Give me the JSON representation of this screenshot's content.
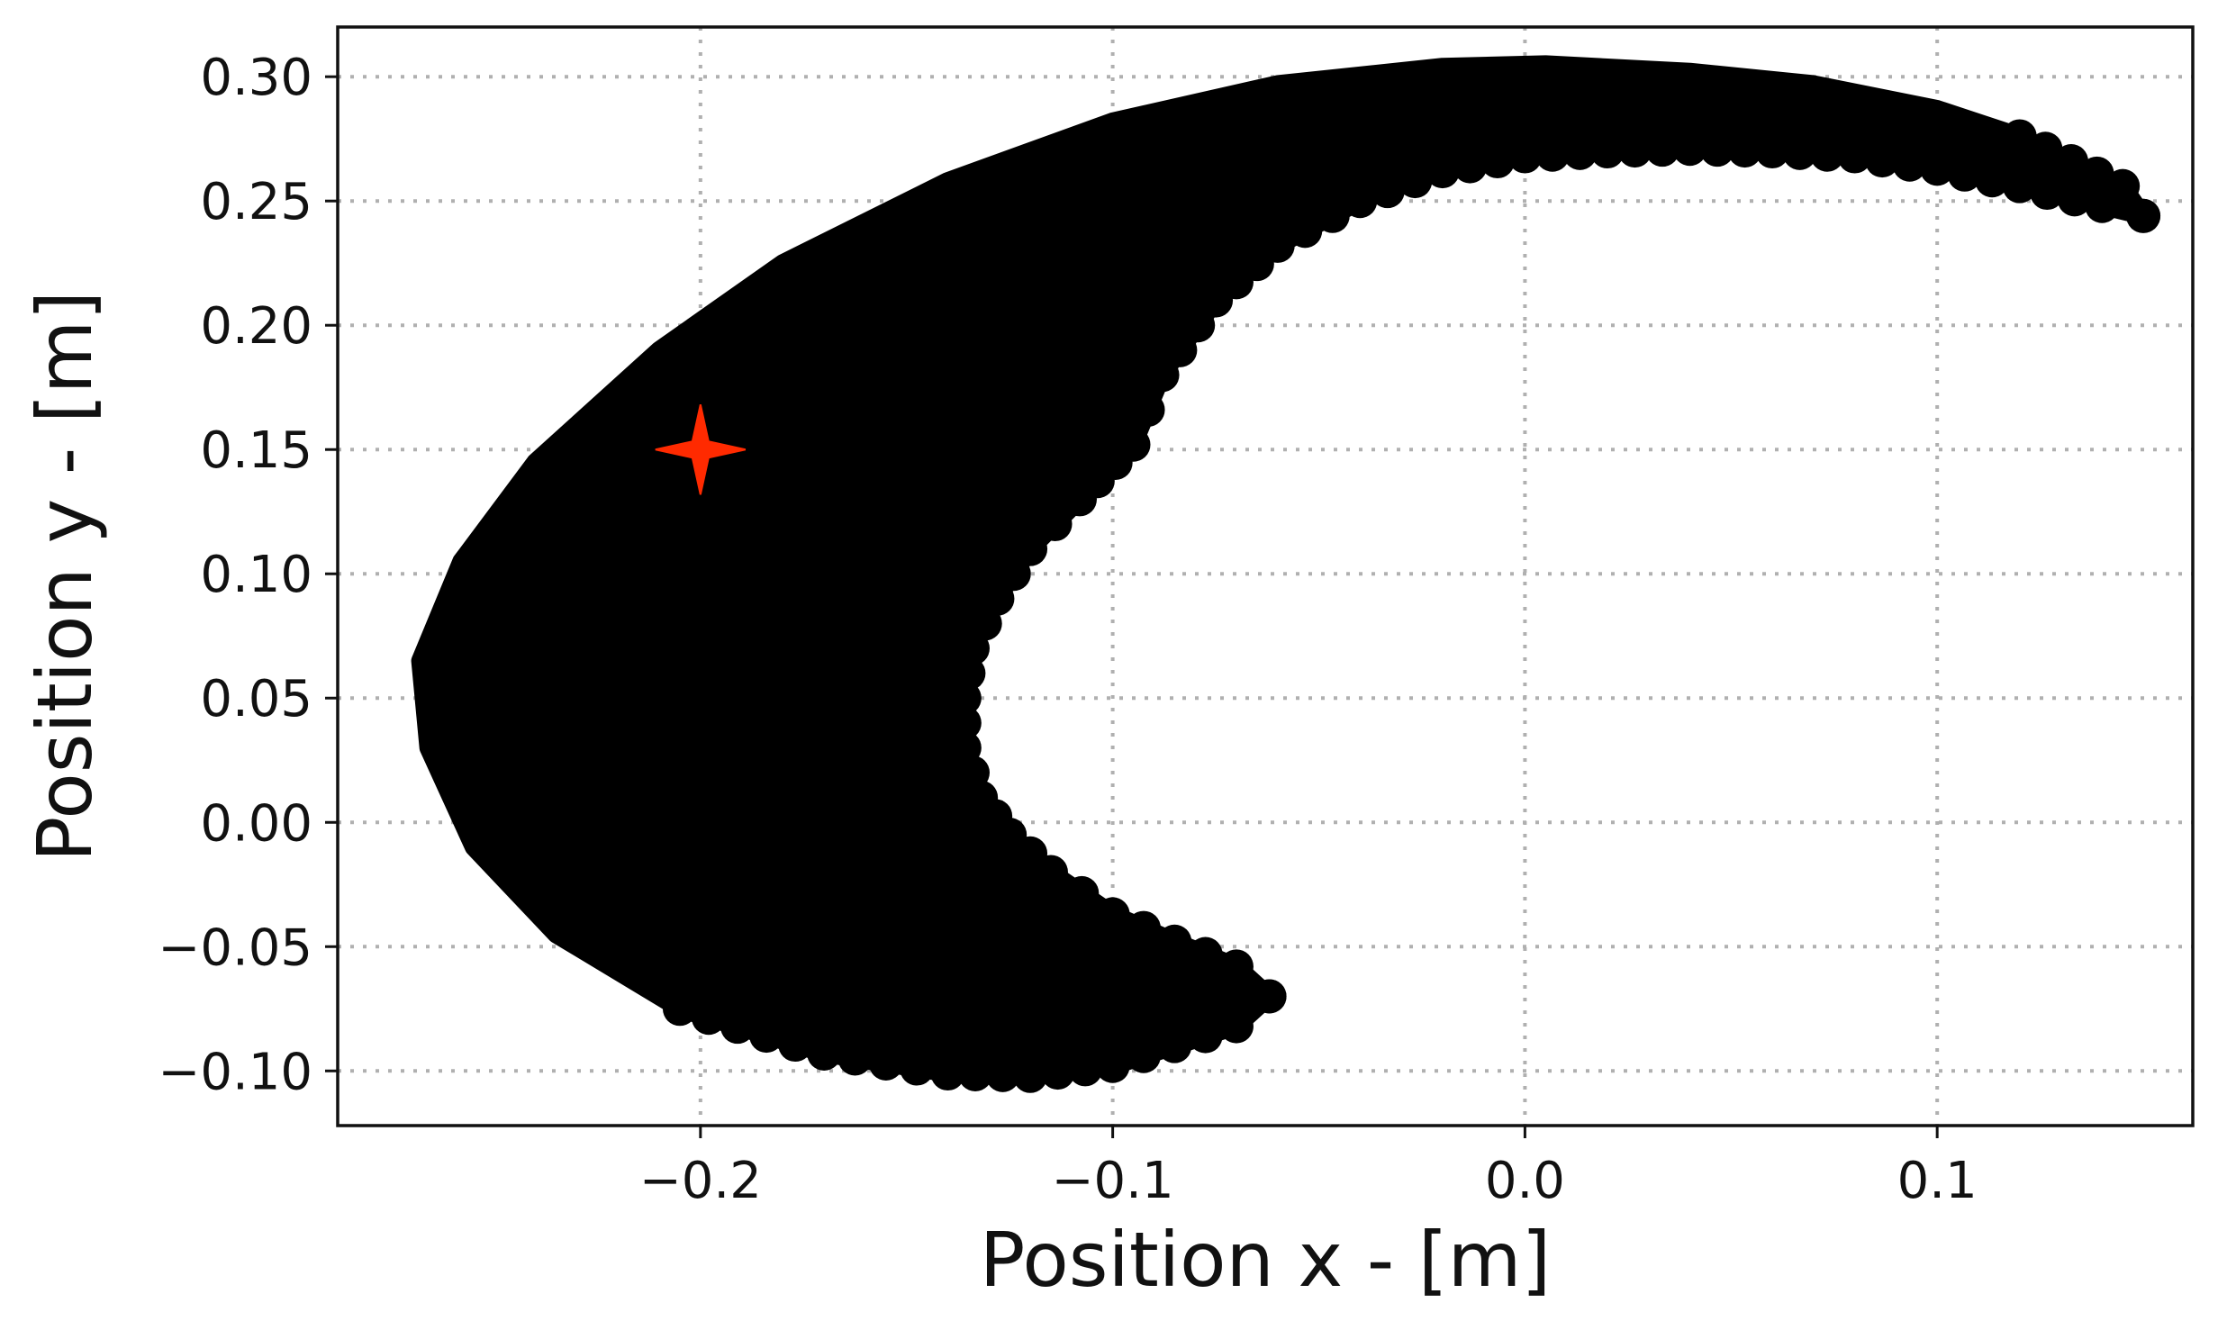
{
  "chart_data": {
    "type": "scatter",
    "title": "",
    "xlabel": "Position x - [m]",
    "ylabel": "Position y - [m]",
    "xlim": [
      -0.288,
      0.162
    ],
    "ylim": [
      -0.122,
      0.32
    ],
    "grid": true,
    "x_ticks": [
      -0.2,
      -0.1,
      0.0,
      0.1
    ],
    "x_tick_labels": [
      "−0.2",
      "−0.1",
      "0.0",
      "0.1"
    ],
    "y_ticks": [
      -0.1,
      -0.05,
      0.0,
      0.05,
      0.1,
      0.15,
      0.2,
      0.25,
      0.3
    ],
    "y_tick_labels": [
      "−0.10",
      "−0.05",
      "0.00",
      "0.05",
      "0.10",
      "0.15",
      "0.20",
      "0.25",
      "0.30"
    ],
    "series": [
      {
        "marker": "circle",
        "color": "#000000",
        "description_shape": "crescent-shaped reachable workspace",
        "outer_boundary": [
          [
            0.15,
            0.244
          ],
          [
            0.145,
            0.256
          ],
          [
            0.12,
            0.276
          ],
          [
            0.1,
            0.287
          ],
          [
            0.07,
            0.297
          ],
          [
            0.04,
            0.302
          ],
          [
            0.005,
            0.305
          ],
          [
            -0.02,
            0.304
          ],
          [
            -0.06,
            0.297
          ],
          [
            -0.1,
            0.282
          ],
          [
            -0.14,
            0.258
          ],
          [
            -0.18,
            0.225
          ],
          [
            -0.21,
            0.19
          ],
          [
            -0.24,
            0.145
          ],
          [
            -0.258,
            0.105
          ],
          [
            -0.268,
            0.065
          ],
          [
            -0.266,
            0.03
          ],
          [
            -0.255,
            -0.01
          ],
          [
            -0.235,
            -0.045
          ],
          [
            -0.205,
            -0.075
          ],
          [
            -0.17,
            -0.093
          ],
          [
            -0.14,
            -0.101
          ],
          [
            -0.12,
            -0.102
          ],
          [
            -0.1,
            -0.098
          ],
          [
            -0.085,
            -0.09
          ],
          [
            -0.07,
            -0.082
          ],
          [
            -0.062,
            -0.07
          ]
        ],
        "inner_boundary": [
          [
            -0.062,
            -0.07
          ],
          [
            -0.07,
            -0.058
          ],
          [
            -0.085,
            -0.048
          ],
          [
            -0.1,
            -0.037
          ],
          [
            -0.115,
            -0.02
          ],
          [
            -0.125,
            -0.005
          ],
          [
            -0.132,
            0.01
          ],
          [
            -0.136,
            0.03
          ],
          [
            -0.136,
            0.05
          ],
          [
            -0.134,
            0.07
          ],
          [
            -0.128,
            0.09
          ],
          [
            -0.12,
            0.11
          ],
          [
            -0.108,
            0.13
          ],
          [
            -0.095,
            0.152
          ],
          [
            -0.088,
            0.18
          ],
          [
            -0.075,
            0.21
          ],
          [
            -0.06,
            0.232
          ],
          [
            -0.04,
            0.25
          ],
          [
            -0.02,
            0.262
          ],
          [
            0.0,
            0.268
          ],
          [
            0.02,
            0.27
          ],
          [
            0.04,
            0.271
          ],
          [
            0.06,
            0.27
          ],
          [
            0.08,
            0.268
          ],
          [
            0.1,
            0.263
          ],
          [
            0.12,
            0.256
          ],
          [
            0.14,
            0.248
          ],
          [
            0.15,
            0.244
          ]
        ]
      },
      {
        "marker": "four-point-star",
        "color": "#ff2a00",
        "points": [
          [
            -0.2,
            0.15
          ]
        ]
      }
    ]
  }
}
